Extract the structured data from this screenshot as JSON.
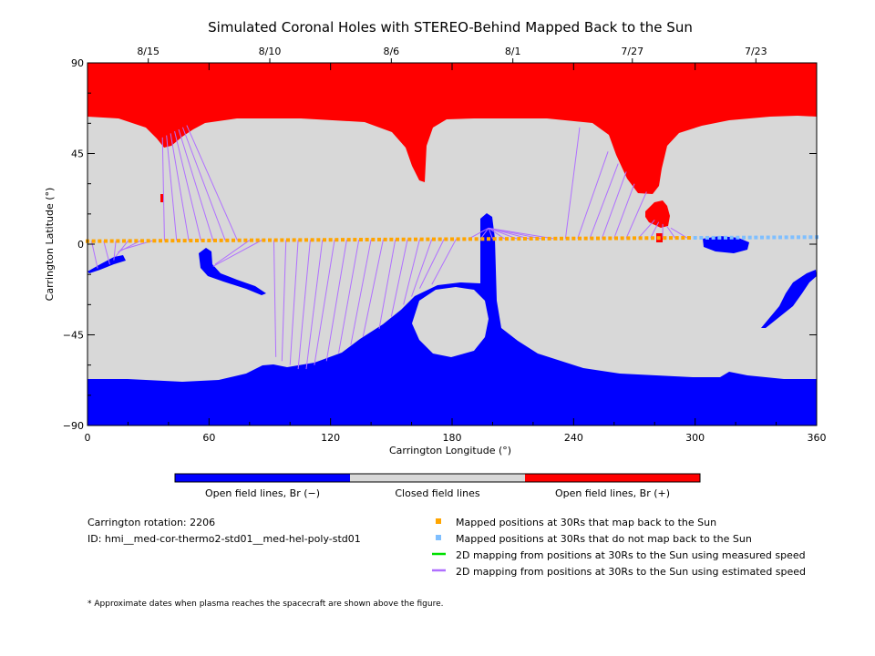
{
  "chart_data": {
    "type": "map",
    "title": "Simulated Coronal Holes with STEREO-Behind Mapped Back to the Sun",
    "xlabel": "Carrington Longitude (°)",
    "ylabel": "Carrington Latitude (°)",
    "xlim": [
      0,
      360
    ],
    "ylim": [
      -90,
      90
    ],
    "x_ticks": [
      0,
      60,
      120,
      180,
      240,
      300,
      360
    ],
    "y_ticks": [
      -90,
      -45,
      0,
      45,
      90
    ],
    "y_tick_labels": [
      "−90",
      "−45",
      "0",
      "45",
      "90"
    ],
    "top_axis_dates": [
      {
        "label": "8/15",
        "lon": 30
      },
      {
        "label": "8/10",
        "lon": 90
      },
      {
        "label": "8/6",
        "lon": 150
      },
      {
        "label": "8/1",
        "lon": 210
      },
      {
        "label": "7/27",
        "lon": 269
      },
      {
        "label": "7/23",
        "lon": 330
      }
    ],
    "colors": {
      "open_negative": "#0000ff",
      "closed": "#d8d8d8",
      "open_positive": "#ff0000",
      "mapped_back": "#ffa500",
      "not_mapped_back": "#7fbfff",
      "measured_speed": "#00e000",
      "estimated_speed": "#b070ff"
    },
    "colorbar": [
      {
        "label": "Open field lines, Br (−)",
        "color": "#0000ff"
      },
      {
        "label": "Closed field lines",
        "color": "#d8d8d8"
      },
      {
        "label": "Open field lines, Br (+)",
        "color": "#ff0000"
      }
    ],
    "mapped_points": {
      "lat_start": 1.5,
      "lat_end": 3.5,
      "mapped_lon_range": [
        0,
        300
      ],
      "not_mapped_lon_range": [
        300,
        360
      ]
    },
    "field_line_footpoints": [
      {
        "from": 2,
        "to": [
          -12,
          5
        ]
      },
      {
        "from": 8,
        "to": [
          -10,
          11
        ]
      },
      {
        "from": 14,
        "to": [
          -8,
          13
        ]
      },
      {
        "from": 20,
        "to": [
          -6,
          14
        ]
      },
      {
        "from": 26,
        "to": [
          -4,
          15
        ]
      },
      {
        "from": 32,
        "to": [
          -3,
          16
        ]
      },
      {
        "from": 38,
        "to": [
          53,
          37
        ]
      },
      {
        "from": 44,
        "to": [
          54,
          39
        ]
      },
      {
        "from": 50,
        "to": [
          55,
          41
        ]
      },
      {
        "from": 56,
        "to": [
          56,
          43
        ]
      },
      {
        "from": 62,
        "to": [
          57,
          45
        ]
      },
      {
        "from": 68,
        "to": [
          58,
          47
        ]
      },
      {
        "from": 74,
        "to": [
          59,
          49
        ]
      },
      {
        "from": 80,
        "to": [
          -10,
          63
        ]
      },
      {
        "from": 86,
        "to": [
          -11,
          62
        ]
      },
      {
        "from": 92,
        "to": [
          -56,
          93
        ]
      },
      {
        "from": 98,
        "to": [
          -58,
          96
        ]
      },
      {
        "from": 104,
        "to": [
          -60,
          100
        ]
      },
      {
        "from": 110,
        "to": [
          -62,
          104
        ]
      },
      {
        "from": 116,
        "to": [
          -62,
          108
        ]
      },
      {
        "from": 122,
        "to": [
          -60,
          112
        ]
      },
      {
        "from": 128,
        "to": [
          -58,
          118
        ]
      },
      {
        "from": 134,
        "to": [
          -54,
          124
        ]
      },
      {
        "from": 140,
        "to": [
          -50,
          130
        ]
      },
      {
        "from": 146,
        "to": [
          -46,
          136
        ]
      },
      {
        "from": 152,
        "to": [
          -42,
          144
        ]
      },
      {
        "from": 158,
        "to": [
          -36,
          150
        ]
      },
      {
        "from": 164,
        "to": [
          -30,
          156
        ]
      },
      {
        "from": 170,
        "to": [
          -26,
          160
        ]
      },
      {
        "from": 176,
        "to": [
          -22,
          164
        ]
      },
      {
        "from": 182,
        "to": [
          -20,
          170
        ]
      },
      {
        "from": 188,
        "to": [
          8,
          198
        ]
      },
      {
        "from": 194,
        "to": [
          8,
          198
        ]
      },
      {
        "from": 200,
        "to": [
          8,
          198
        ]
      },
      {
        "from": 206,
        "to": [
          8,
          198
        ]
      },
      {
        "from": 212,
        "to": [
          8,
          198
        ]
      },
      {
        "from": 218,
        "to": [
          8,
          198
        ]
      },
      {
        "from": 224,
        "to": [
          8,
          198
        ]
      },
      {
        "from": 230,
        "to": [
          8,
          198
        ]
      },
      {
        "from": 236,
        "to": [
          58,
          243
        ]
      },
      {
        "from": 242,
        "to": [
          46,
          257
        ]
      },
      {
        "from": 248,
        "to": [
          40,
          262
        ]
      },
      {
        "from": 254,
        "to": [
          36,
          266
        ]
      },
      {
        "from": 260,
        "to": [
          30,
          270
        ]
      },
      {
        "from": 266,
        "to": [
          26,
          276
        ]
      },
      {
        "from": 272,
        "to": [
          12,
          280
        ]
      },
      {
        "from": 278,
        "to": [
          11,
          282
        ]
      },
      {
        "from": 284,
        "to": [
          10,
          284
        ]
      },
      {
        "from": 290,
        "to": [
          9,
          286
        ]
      },
      {
        "from": 296,
        "to": [
          8,
          288
        ]
      }
    ],
    "legend": [
      {
        "kind": "square",
        "color": "#ffa500",
        "label": "Mapped positions at 30Rs that map back to the Sun"
      },
      {
        "kind": "square",
        "color": "#7fbfff",
        "label": "Mapped positions at 30Rs that do not map back to the Sun"
      },
      {
        "kind": "line",
        "color": "#00e000",
        "label": "2D mapping from positions at 30Rs to the Sun using measured speed"
      },
      {
        "kind": "line",
        "color": "#b070ff",
        "label": "2D mapping from positions at 30Rs to the Sun using estimated speed"
      }
    ],
    "rotation_label": "Carrington rotation: 2206",
    "id_label": "ID: hmi__med-cor-thermo2-std01__med-hel-poly-std01",
    "footnote": "* Approximate dates when plasma reaches the spacecraft are shown above the figure."
  }
}
